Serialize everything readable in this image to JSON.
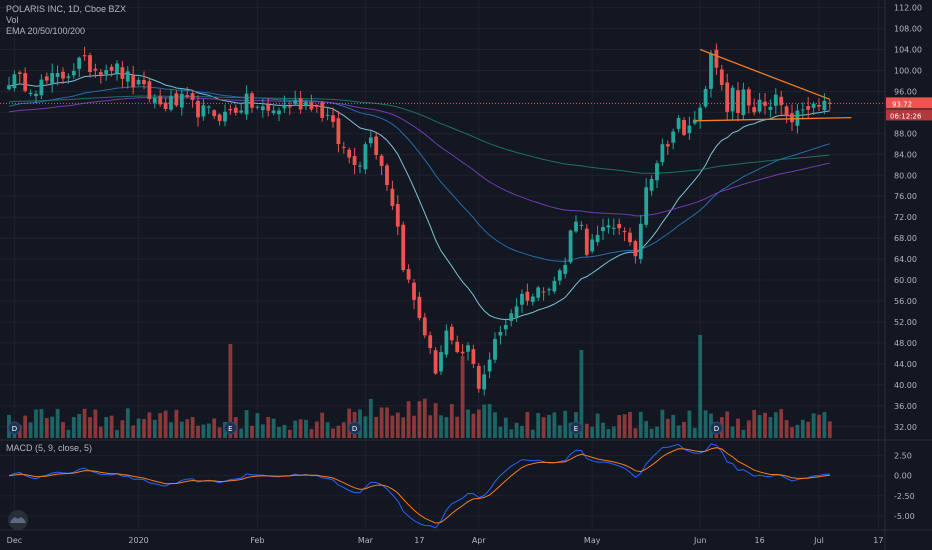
{
  "header": {
    "title": "POLARIS INC, 1D, Cboe BZX",
    "volume_label": "Vol",
    "ema_label": "EMA 20/50/100/200"
  },
  "macd": {
    "label": "MACD (5, 9, close, 5)",
    "ticks": [
      "2.50",
      "0.00",
      "-2.50",
      "-5.00"
    ],
    "tick_values": [
      2.5,
      0,
      -2.5,
      -5.0
    ],
    "range": [
      -6.5,
      3.7
    ]
  },
  "price_axis": {
    "ticks": [
      "112.00",
      "108.00",
      "104.00",
      "100.00",
      "96.00",
      "92.00",
      "88.00",
      "84.00",
      "80.00",
      "76.00",
      "72.00",
      "68.00",
      "64.00",
      "60.00",
      "56.00",
      "52.00",
      "48.00",
      "44.00",
      "40.00",
      "36.00",
      "32.00"
    ],
    "current_price": "93.72",
    "countdown": "06:12:26",
    "current_value": 93.72
  },
  "time_axis": {
    "labels": [
      "Dec",
      "2020",
      "Feb",
      "Mar",
      "17",
      "Apr",
      "May",
      "Jun",
      "16",
      "Jul",
      "17"
    ],
    "label_bars": [
      1,
      24,
      46,
      66,
      76,
      87,
      108,
      128,
      139,
      150,
      161
    ]
  },
  "event_markers": [
    {
      "label": "D",
      "bar": 1
    },
    {
      "label": "E",
      "bar": 41
    },
    {
      "label": "D",
      "bar": 64
    },
    {
      "label": "E",
      "bar": 105
    },
    {
      "label": "D",
      "bar": 131
    }
  ],
  "colors": {
    "background": "#131722",
    "up": "#26a69a",
    "down": "#ef5350",
    "ema20": "#89d4e8",
    "ema50": "#2a73b8",
    "ema100": "#7b3fc0",
    "ema200": "#1f7a6e",
    "trendline": "#f57c23",
    "price_line": "#ef5350",
    "macd_line": "#2962ff",
    "signal_line": "#f57c23"
  },
  "chart_data": {
    "type": "candlestick",
    "title": "POLARIS INC, 1D, Cboe BZX",
    "ylim": [
      31,
      112.5
    ],
    "anchors": [
      [
        0,
        98.5
      ],
      [
        5,
        97
      ],
      [
        10,
        99
      ],
      [
        13,
        101.5
      ],
      [
        16,
        100.5
      ],
      [
        19,
        101
      ],
      [
        22,
        98.5
      ],
      [
        25,
        96
      ],
      [
        28,
        93.5
      ],
      [
        32,
        94
      ],
      [
        36,
        92
      ],
      [
        40,
        91.5
      ],
      [
        44,
        94
      ],
      [
        48,
        92
      ],
      [
        52,
        93.5
      ],
      [
        56,
        94
      ],
      [
        59,
        91
      ],
      [
        61,
        86.5
      ],
      [
        63,
        83.5
      ],
      [
        65,
        83
      ],
      [
        67,
        88.5
      ],
      [
        68,
        85
      ],
      [
        70,
        79
      ],
      [
        71,
        75
      ],
      [
        72,
        70
      ],
      [
        73,
        63
      ],
      [
        75,
        56
      ],
      [
        77,
        50
      ],
      [
        78,
        46
      ],
      [
        79,
        43
      ],
      [
        81,
        50
      ],
      [
        83,
        45
      ],
      [
        85,
        47
      ],
      [
        86,
        43.5
      ],
      [
        87,
        40
      ],
      [
        89,
        45
      ],
      [
        90,
        48
      ],
      [
        91,
        50
      ],
      [
        93,
        54
      ],
      [
        95,
        57
      ],
      [
        97,
        57
      ],
      [
        99,
        59
      ],
      [
        101,
        60
      ],
      [
        103,
        63
      ],
      [
        104,
        69
      ],
      [
        105,
        72.5
      ],
      [
        106,
        70
      ],
      [
        107,
        66
      ],
      [
        109,
        68
      ],
      [
        111,
        70
      ],
      [
        113,
        71
      ],
      [
        115,
        66
      ],
      [
        116,
        65
      ],
      [
        117,
        71
      ],
      [
        118,
        79
      ],
      [
        119,
        80.5
      ],
      [
        120,
        83
      ],
      [
        122,
        87
      ],
      [
        124,
        90
      ],
      [
        125,
        87
      ],
      [
        126,
        90
      ],
      [
        127,
        90
      ],
      [
        128,
        94
      ],
      [
        129,
        98
      ],
      [
        130,
        102
      ],
      [
        131,
        100
      ],
      [
        132,
        96
      ],
      [
        133,
        93
      ],
      [
        134,
        95.5
      ],
      [
        135,
        92
      ],
      [
        136,
        97
      ],
      [
        137,
        94
      ],
      [
        138,
        91
      ],
      [
        139,
        94
      ],
      [
        140,
        92
      ],
      [
        141,
        93
      ],
      [
        142,
        95
      ],
      [
        143,
        92
      ],
      [
        144,
        90
      ],
      [
        145,
        91
      ],
      [
        147,
        92
      ],
      [
        149,
        93
      ],
      [
        151,
        93.5
      ],
      [
        152,
        93.7
      ]
    ],
    "volume_spikes": {
      "41": 94,
      "84": 82,
      "106": 88,
      "128": 103
    },
    "trendline_upper": [
      [
        128,
        104
      ],
      [
        152,
        94.5
      ]
    ],
    "trendline_lower": [
      [
        127,
        90.4
      ],
      [
        156,
        91
      ]
    ]
  }
}
